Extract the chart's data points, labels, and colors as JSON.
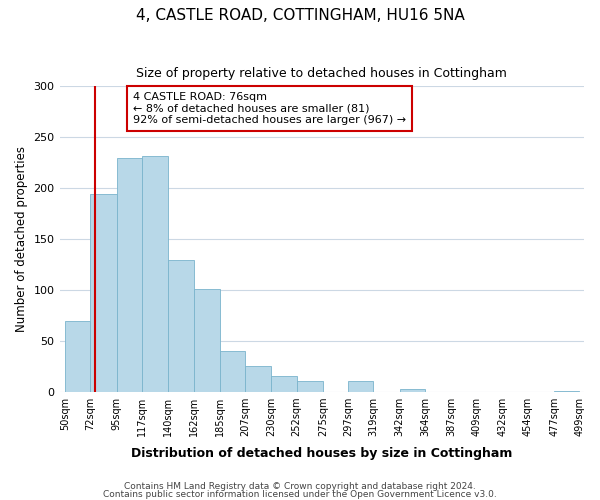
{
  "title": "4, CASTLE ROAD, COTTINGHAM, HU16 5NA",
  "subtitle": "Size of property relative to detached houses in Cottingham",
  "xlabel": "Distribution of detached houses by size in Cottingham",
  "ylabel": "Number of detached properties",
  "bar_left_edges": [
    50,
    72,
    95,
    117,
    140,
    162,
    185,
    207,
    230,
    252,
    275,
    297,
    319,
    342,
    364,
    387,
    409,
    432,
    454,
    477
  ],
  "bar_heights": [
    69,
    194,
    229,
    231,
    129,
    101,
    40,
    25,
    15,
    10,
    0,
    10,
    0,
    2,
    0,
    0,
    0,
    0,
    0,
    1
  ],
  "bar_widths": [
    22,
    23,
    22,
    23,
    22,
    23,
    22,
    23,
    22,
    23,
    22,
    22,
    23,
    22,
    23,
    22,
    23,
    22,
    23,
    22
  ],
  "bar_color": "#b8d8e8",
  "bar_edgecolor": "#7ab4cc",
  "tick_labels": [
    "50sqm",
    "72sqm",
    "95sqm",
    "117sqm",
    "140sqm",
    "162sqm",
    "185sqm",
    "207sqm",
    "230sqm",
    "252sqm",
    "275sqm",
    "297sqm",
    "319sqm",
    "342sqm",
    "364sqm",
    "387sqm",
    "409sqm",
    "432sqm",
    "454sqm",
    "477sqm",
    "499sqm"
  ],
  "tick_positions": [
    50,
    72,
    95,
    117,
    140,
    162,
    185,
    207,
    230,
    252,
    275,
    297,
    319,
    342,
    364,
    387,
    409,
    432,
    454,
    477,
    499
  ],
  "ylim": [
    0,
    300
  ],
  "xlim_min": 45,
  "xlim_max": 503,
  "vline_x": 76,
  "vline_color": "#cc0000",
  "annotation_line1": "4 CASTLE ROAD: 76sqm",
  "annotation_line2": "← 8% of detached houses are smaller (81)",
  "annotation_line3": "92% of semi-detached houses are larger (967) →",
  "annotation_box_color": "white",
  "annotation_box_edgecolor": "#cc0000",
  "footer1": "Contains HM Land Registry data © Crown copyright and database right 2024.",
  "footer2": "Contains public sector information licensed under the Open Government Licence v3.0.",
  "yticks": [
    0,
    50,
    100,
    150,
    200,
    250,
    300
  ],
  "background_color": "#ffffff",
  "grid_color": "#ccd8e4"
}
